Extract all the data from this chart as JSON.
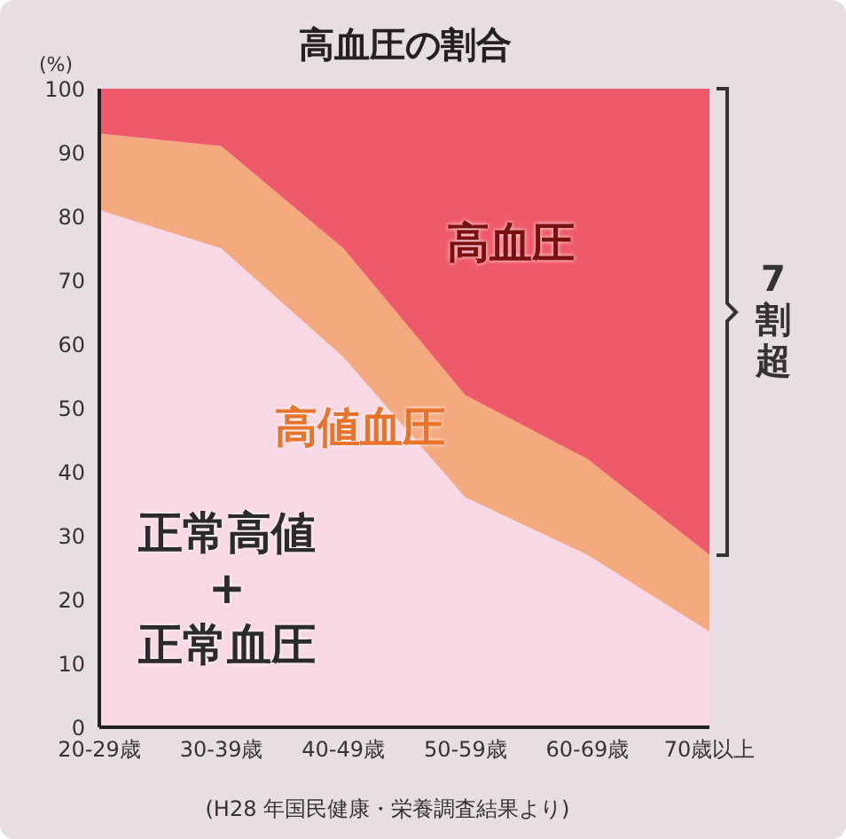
{
  "chart_data": {
    "type": "area",
    "title": "高血圧の割合",
    "ylabel": "(%)",
    "stacked": true,
    "legend": false,
    "grid": false,
    "categories": [
      "20-29歳",
      "30-39歳",
      "40-49歳",
      "50-59歳",
      "60-69歳",
      "70歳以上"
    ],
    "series": [
      {
        "name": "正常高値\n+\n正常血圧",
        "color": "#f8d8e4",
        "values": [
          81,
          75,
          58,
          36,
          27,
          15
        ]
      },
      {
        "name": "高値血圧",
        "color": "#f5a97f",
        "values": [
          12,
          16,
          17,
          16,
          15,
          12
        ]
      },
      {
        "name": "高血圧",
        "color": "#ef5a6a",
        "values": [
          7,
          9,
          25,
          48,
          58,
          73
        ]
      }
    ],
    "ylim": [
      0,
      100
    ],
    "yticks": [
      0,
      10,
      20,
      30,
      40,
      50,
      60,
      70,
      80,
      90,
      100
    ],
    "annotations": [
      "7割超",
      "(H28 年国民健康・栄養調査結果より)"
    ]
  }
}
